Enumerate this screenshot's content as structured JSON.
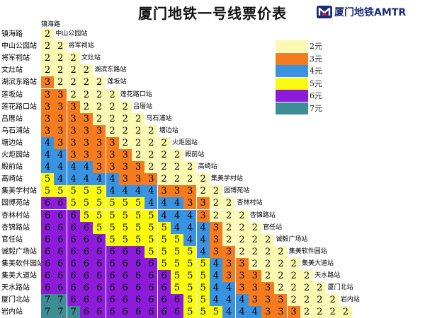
{
  "title": "厦门地铁一号线票价表",
  "logo": {
    "text": "厦门地铁AMTR",
    "mark": "xiamen-metro-logo-icon"
  },
  "stations": [
    "镇海路",
    "中山公园站",
    "将军祠站",
    "文灶站",
    "湖滨东路站",
    "莲坂站",
    "莲花路口站",
    "吕厝站",
    "乌石浦站",
    "塘边站",
    "火炬园站",
    "殿前站",
    "高崎站",
    "集美学村站",
    "园博苑站",
    "杏林村站",
    "杏锦路站",
    "官任站",
    "诚毅广场站",
    "集美软件园站",
    "集美大道站",
    "天水路站",
    "厦门北站",
    "岩内站"
  ],
  "fares": [
    [
      2
    ],
    [
      2,
      2
    ],
    [
      2,
      2,
      2
    ],
    [
      2,
      2,
      2,
      2
    ],
    [
      3,
      2,
      2,
      2,
      2
    ],
    [
      3,
      3,
      2,
      2,
      2,
      2
    ],
    [
      3,
      3,
      3,
      2,
      2,
      2,
      2
    ],
    [
      3,
      3,
      3,
      3,
      2,
      2,
      2,
      2
    ],
    [
      3,
      3,
      3,
      3,
      3,
      2,
      2,
      2,
      2
    ],
    [
      4,
      3,
      3,
      3,
      3,
      3,
      2,
      2,
      2,
      2
    ],
    [
      4,
      4,
      3,
      3,
      3,
      3,
      3,
      2,
      2,
      2,
      2
    ],
    [
      4,
      4,
      4,
      4,
      3,
      3,
      3,
      3,
      2,
      2,
      2,
      2
    ],
    [
      5,
      4,
      4,
      4,
      4,
      4,
      3,
      3,
      3,
      2,
      2,
      2,
      2
    ],
    [
      5,
      5,
      5,
      5,
      5,
      4,
      4,
      4,
      4,
      3,
      3,
      3,
      2,
      2
    ],
    [
      6,
      6,
      5,
      5,
      5,
      5,
      5,
      5,
      4,
      4,
      4,
      3,
      3,
      2,
      2
    ],
    [
      6,
      6,
      6,
      5,
      5,
      5,
      5,
      5,
      5,
      4,
      4,
      4,
      3,
      2,
      2,
      2
    ],
    [
      6,
      6,
      6,
      6,
      5,
      5,
      5,
      5,
      5,
      5,
      4,
      4,
      4,
      3,
      2,
      2,
      2
    ],
    [
      6,
      6,
      6,
      6,
      6,
      5,
      5,
      5,
      5,
      5,
      5,
      4,
      4,
      3,
      2,
      2,
      2,
      2
    ],
    [
      6,
      6,
      6,
      6,
      6,
      6,
      6,
      6,
      5,
      5,
      5,
      5,
      4,
      3,
      3,
      2,
      2,
      2,
      2
    ],
    [
      6,
      6,
      6,
      6,
      6,
      6,
      6,
      6,
      6,
      5,
      5,
      5,
      5,
      4,
      3,
      3,
      2,
      2,
      2,
      2
    ],
    [
      6,
      6,
      6,
      6,
      6,
      6,
      6,
      6,
      6,
      6,
      5,
      5,
      5,
      4,
      3,
      3,
      3,
      2,
      2,
      2,
      2
    ],
    [
      6,
      6,
      6,
      6,
      6,
      6,
      6,
      6,
      6,
      6,
      5,
      5,
      5,
      4,
      4,
      3,
      3,
      3,
      2,
      2,
      2,
      2
    ],
    [
      7,
      7,
      6,
      6,
      6,
      6,
      6,
      6,
      6,
      6,
      6,
      5,
      5,
      4,
      4,
      4,
      3,
      3,
      3,
      2,
      2,
      2,
      2
    ],
    [
      7,
      7,
      7,
      6,
      6,
      6,
      6,
      6,
      6,
      6,
      6,
      5,
      5,
      5,
      4,
      4,
      4,
      3,
      3,
      3,
      2,
      2,
      2,
      2
    ]
  ],
  "fare_colors": {
    "2": "#fcf9b3",
    "3": "#f47c1f",
    "4": "#3a93e0",
    "5": "#fbfb12",
    "6": "#8c1cd9",
    "7": "#3c8d96"
  },
  "legend": [
    {
      "fare": 2,
      "label": "2元"
    },
    {
      "fare": 3,
      "label": "3元"
    },
    {
      "fare": 4,
      "label": "4元"
    },
    {
      "fare": 5,
      "label": "5元"
    },
    {
      "fare": 6,
      "label": "6元"
    },
    {
      "fare": 7,
      "label": "7元"
    }
  ]
}
